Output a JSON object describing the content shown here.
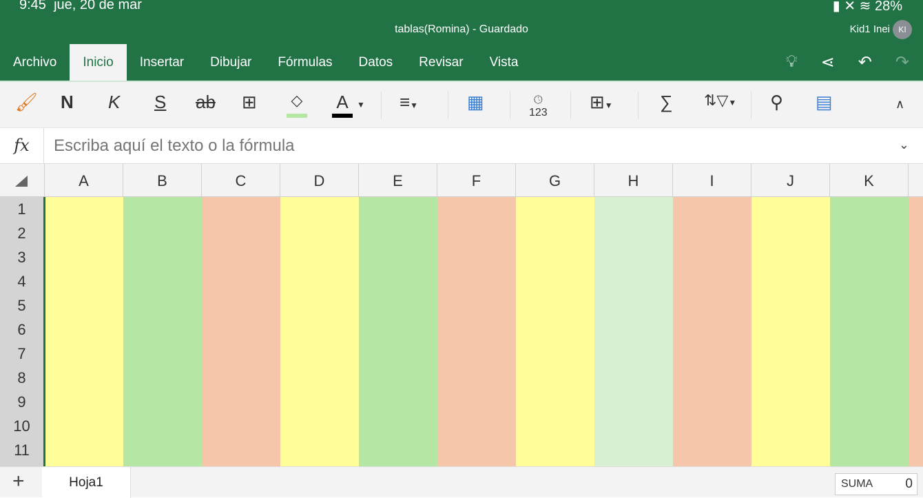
{
  "status": {
    "time": "9:45",
    "date": "jue, 20 de mar",
    "battery": "28%"
  },
  "title": "tablas(Romina) - Guardado",
  "user": {
    "name": "Kid1 Inei",
    "initials": "KI"
  },
  "tabs": [
    "Archivo",
    "Inicio",
    "Insertar",
    "Dibujar",
    "Fórmulas",
    "Datos",
    "Revisar",
    "Vista"
  ],
  "active_tab": "Inicio",
  "ribbon": {
    "bold": "N",
    "italic": "K",
    "underline": "S",
    "strike": "ab",
    "number_format": "123"
  },
  "formula": {
    "label": "fx",
    "placeholder": "Escriba aquí el texto o la fórmula"
  },
  "columns": [
    "A",
    "B",
    "C",
    "D",
    "E",
    "F",
    "G",
    "H",
    "I",
    "J",
    "K"
  ],
  "rows": [
    "1",
    "2",
    "3",
    "4",
    "5",
    "6",
    "7",
    "8",
    "9",
    "10",
    "11"
  ],
  "column_fills": [
    "#fffe99",
    "#b6e6a3",
    "#f6c6aa",
    "#fffe99",
    "#b6e6a3",
    "#f6c6aa",
    "#fffe99",
    "#d8efd1",
    "#f6c6aa",
    "#fffe99",
    "#b6e6a3",
    "#f6c6aa"
  ],
  "accent": "#217346",
  "sheets": [
    "Hoja1"
  ],
  "status_bar": {
    "label": "SUMA",
    "value": "0"
  }
}
